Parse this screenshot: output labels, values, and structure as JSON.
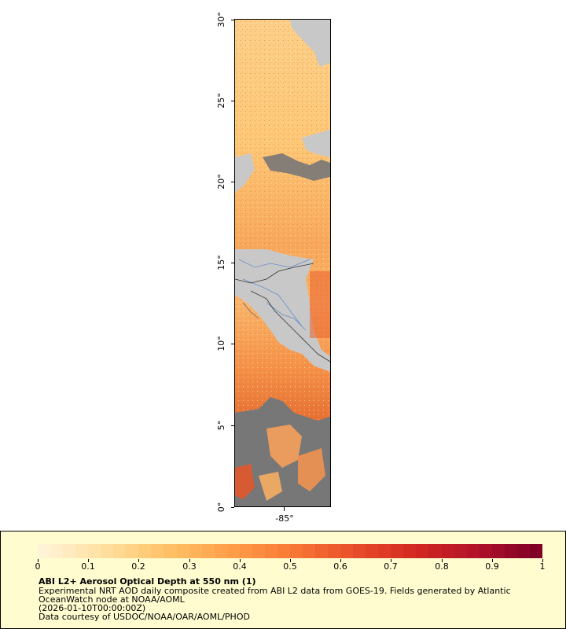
{
  "map": {
    "lat_labels": [
      "0°",
      "5°",
      "10°",
      "15°",
      "20°",
      "25°",
      "30°"
    ],
    "lon_label": "-85°",
    "colors": {
      "land": "#c8c8c8",
      "no_data": "#777777",
      "border": "#333333",
      "river": "#6a8fc8"
    }
  },
  "legend": {
    "scale_labels": [
      "0",
      "0.1",
      "0.2",
      "0.3",
      "0.4",
      "0.5",
      "0.6",
      "0.7",
      "0.8",
      "0.9",
      "1"
    ],
    "colors": [
      "#fff3d6",
      "#ffdf9e",
      "#ffc266",
      "#ff9f4a",
      "#f97a35",
      "#e9502a",
      "#d42a20",
      "#b3122a",
      "#800026"
    ],
    "title": "ABI L2+ Aerosol Optical Depth at 550 nm (1)",
    "line1": "Experimental NRT AOD daily composite created from ABI L2 data from GOES-19. Fields generated by Atlantic",
    "line2": "OceanWatch node at NOAA/AOML",
    "line3": "(2026-01-10T00:00:00Z)",
    "line4": "Data courtesy of USDOC/NOAA/OAR/AOML/PHOD"
  }
}
